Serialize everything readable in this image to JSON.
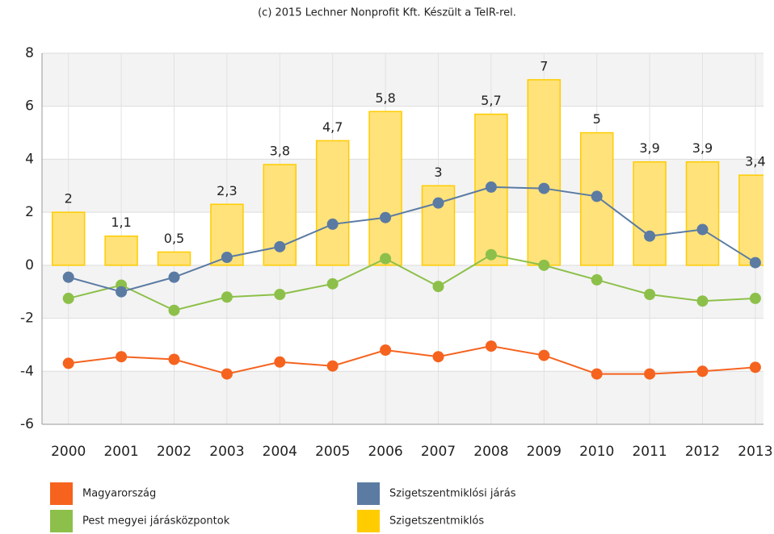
{
  "chart_data": {
    "type": "bar_line",
    "title": "(c) 2015 Lechner Nonprofit Kft. Készült a TeIR-rel.",
    "categories": [
      "2000",
      "2001",
      "2002",
      "2003",
      "2004",
      "2005",
      "2006",
      "2007",
      "2008",
      "2009",
      "2010",
      "2011",
      "2012",
      "2013"
    ],
    "series": [
      {
        "name": "Szigetszentmiklós",
        "type": "bar",
        "color": "#ffcc00",
        "values": [
          2,
          1.1,
          0.5,
          2.3,
          3.8,
          4.7,
          5.8,
          3,
          5.7,
          7,
          5,
          3.9,
          3.9,
          3.4
        ],
        "value_labels": [
          "2",
          "1,1",
          "0,5",
          "2,3",
          "3,8",
          "4,7",
          "5,8",
          "3",
          "5,7",
          "7",
          "5",
          "3,9",
          "3,9",
          "3,4"
        ]
      },
      {
        "name": "Magyarország",
        "type": "line",
        "color": "#f5631f",
        "values": [
          -3.7,
          -3.45,
          -3.55,
          -4.1,
          -3.65,
          -3.8,
          -3.2,
          -3.45,
          -3.05,
          -3.4,
          -4.1,
          -4.1,
          -4.0,
          -3.85
        ]
      },
      {
        "name": "Pest megyei járásközpontok",
        "type": "line",
        "color": "#8dc04a",
        "values": [
          -1.25,
          -0.75,
          -1.7,
          -1.2,
          -1.1,
          -0.7,
          0.25,
          -0.8,
          0.4,
          0.0,
          -0.55,
          -1.1,
          -1.35,
          -1.25
        ]
      },
      {
        "name": "Szigetszentmiklósi járás",
        "type": "line",
        "color": "#5b7ba3",
        "values": [
          -0.45,
          -1.0,
          -0.45,
          0.3,
          0.7,
          1.55,
          1.8,
          2.35,
          2.95,
          2.9,
          2.6,
          1.1,
          1.35,
          0.1
        ]
      }
    ],
    "ylim": [
      -6,
      8
    ],
    "yticks": [
      -6,
      -4,
      -2,
      0,
      2,
      4,
      6,
      8
    ],
    "grid": true
  }
}
